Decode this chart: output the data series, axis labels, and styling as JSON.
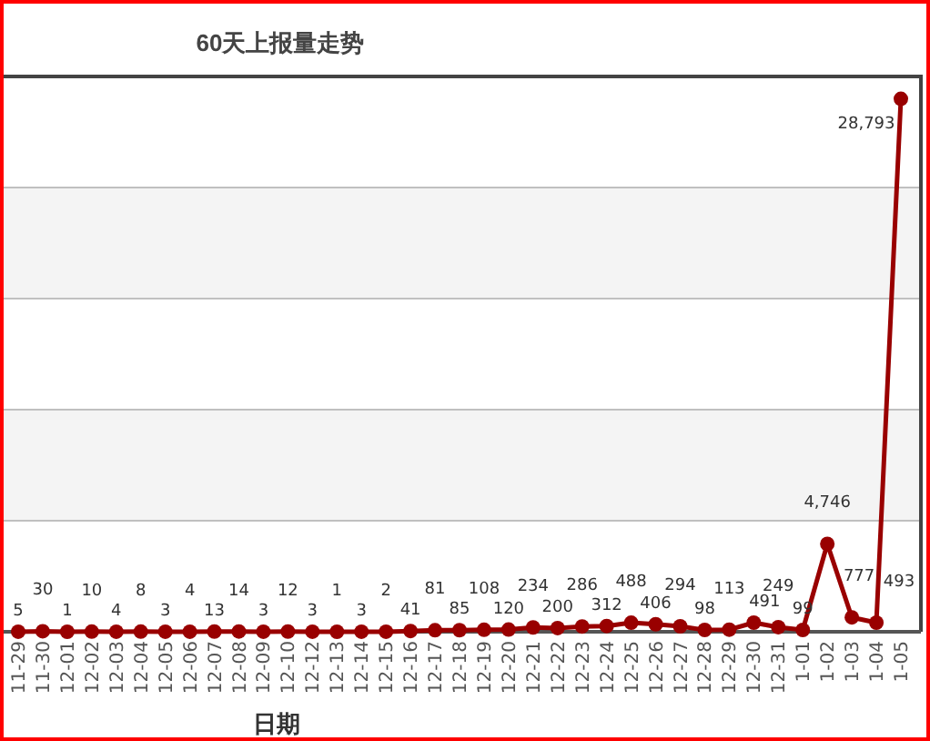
{
  "chart_data": {
    "type": "line",
    "title": "60天上报量走势",
    "xlabel": "日期",
    "categories": [
      "11-29",
      "11-30",
      "12-01",
      "12-02",
      "12-03",
      "12-04",
      "12-05",
      "12-06",
      "12-07",
      "12-08",
      "12-09",
      "12-10",
      "12-12",
      "12-13",
      "12-14",
      "12-15",
      "12-16",
      "12-17",
      "12-18",
      "12-19",
      "12-20",
      "12-21",
      "12-22",
      "12-23",
      "12-24",
      "12-25",
      "12-26",
      "12-27",
      "12-28",
      "12-29",
      "12-30",
      "12-31",
      "1-01",
      "1-02",
      "1-03",
      "1-04",
      "1-05"
    ],
    "values": [
      5,
      30,
      1,
      10,
      4,
      8,
      3,
      4,
      13,
      14,
      3,
      12,
      3,
      1,
      3,
      2,
      41,
      81,
      85,
      108,
      120,
      234,
      200,
      286,
      312,
      488,
      406,
      294,
      98,
      113,
      491,
      249,
      99,
      4746,
      777,
      493,
      28793
    ],
    "value_labels": [
      "5",
      "30",
      "1",
      "10",
      "4",
      "8",
      "3",
      "4",
      "13",
      "14",
      "3",
      "12",
      "3",
      "1",
      "3",
      "2",
      "41",
      "81",
      "85",
      "108",
      "120",
      "234",
      "200",
      "286",
      "312",
      "488",
      "406",
      "294",
      "98",
      "113",
      "491",
      "249",
      "99",
      "4,746",
      "777",
      "493",
      "28,793"
    ],
    "color": "#990000",
    "marker": "circle",
    "line_style": "solid",
    "ylim": [
      0,
      30000
    ],
    "yticks": [
      {
        "value": 0,
        "label": null
      },
      {
        "value": 6000,
        "label": null
      },
      {
        "value": 12000,
        "label": null
      },
      {
        "value": 18000,
        "label": null
      },
      {
        "value": 24000,
        "label": null
      },
      {
        "value": 30000,
        "label": null
      }
    ],
    "tick_labels": "x",
    "grid": "y",
    "bands": [
      {
        "axis": "y",
        "from": 6000,
        "to": 12000,
        "color": "#f4f4f4"
      },
      {
        "axis": "y",
        "from": 18000,
        "to": 24000,
        "color": "#f4f4f4"
      }
    ]
  }
}
